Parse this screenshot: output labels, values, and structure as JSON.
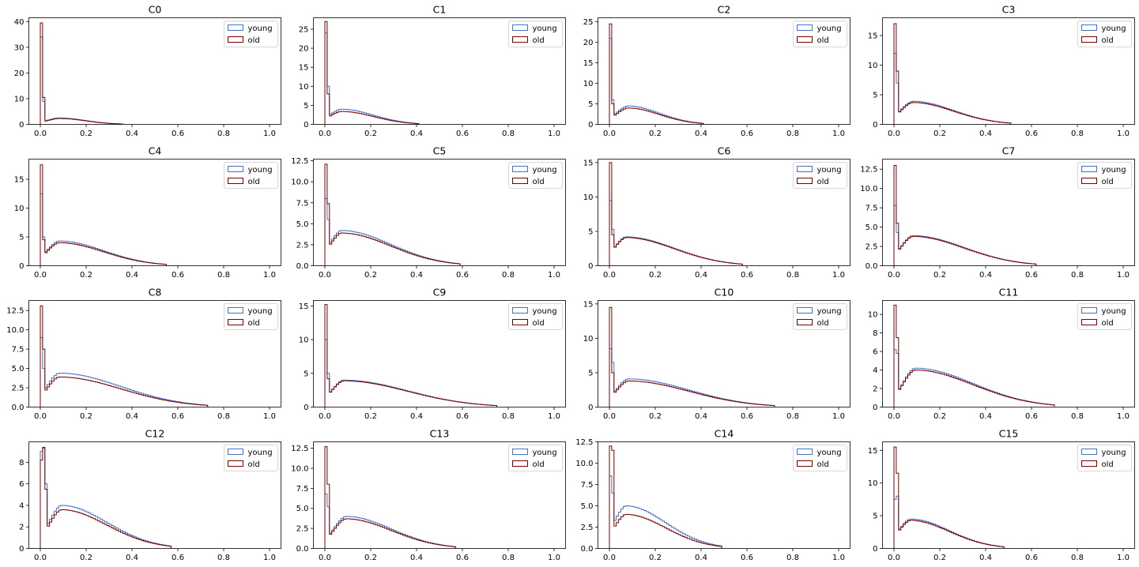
{
  "colors": {
    "young": "#4472c4",
    "old": "#7a0000",
    "axis": "#000000",
    "background": "#ffffff"
  },
  "chart_data": [
    {
      "type": "histogram",
      "title": "C0",
      "xlim": [
        0,
        1
      ],
      "xticks": [
        "0.0",
        "0.2",
        "0.4",
        "0.6",
        "0.8",
        "1.0"
      ],
      "yticks": [
        "0",
        "10",
        "20",
        "30",
        "40"
      ],
      "ylim": [
        0,
        41.5
      ],
      "legend": {
        "position": "top-right",
        "entries": [
          "young",
          "old"
        ]
      },
      "data_max": 0.36,
      "series": [
        {
          "name": "young",
          "peaks": [
            34,
            9
          ],
          "bump": 2.5,
          "mode": 0.08
        },
        {
          "name": "old",
          "peaks": [
            39.5,
            10.5
          ],
          "bump": 2.3,
          "mode": 0.08
        }
      ]
    },
    {
      "type": "histogram",
      "title": "C1",
      "xlim": [
        0,
        1
      ],
      "xticks": [
        "0.0",
        "0.2",
        "0.4",
        "0.6",
        "0.8",
        "1.0"
      ],
      "yticks": [
        "0",
        "5",
        "10",
        "15",
        "20",
        "25"
      ],
      "ylim": [
        0,
        28
      ],
      "legend": {
        "position": "top-right",
        "entries": [
          "young",
          "old"
        ]
      },
      "data_max": 0.41,
      "series": [
        {
          "name": "young",
          "peaks": [
            24,
            10
          ],
          "bump": 4.0,
          "mode": 0.07
        },
        {
          "name": "old",
          "peaks": [
            27,
            8
          ],
          "bump": 3.4,
          "mode": 0.07
        }
      ]
    },
    {
      "type": "histogram",
      "title": "C2",
      "xlim": [
        0,
        1
      ],
      "xticks": [
        "0.0",
        "0.2",
        "0.4",
        "0.6",
        "0.8",
        "1.0"
      ],
      "yticks": [
        "0",
        "5",
        "10",
        "15",
        "20",
        "25"
      ],
      "ylim": [
        0,
        26
      ],
      "legend": {
        "position": "top-right",
        "entries": [
          "young",
          "old"
        ]
      },
      "data_max": 0.41,
      "series": [
        {
          "name": "young",
          "peaks": [
            21,
            6
          ],
          "bump": 4.5,
          "mode": 0.08
        },
        {
          "name": "old",
          "peaks": [
            24.5,
            5
          ],
          "bump": 4.0,
          "mode": 0.08
        }
      ]
    },
    {
      "type": "histogram",
      "title": "C3",
      "xlim": [
        0,
        1
      ],
      "xticks": [
        "0.0",
        "0.2",
        "0.4",
        "0.6",
        "0.8",
        "1.0"
      ],
      "yticks": [
        "0",
        "5",
        "10",
        "15"
      ],
      "ylim": [
        0,
        18
      ],
      "legend": {
        "position": "top-right",
        "entries": [
          "young",
          "old"
        ]
      },
      "data_max": 0.51,
      "series": [
        {
          "name": "young",
          "peaks": [
            12,
            7
          ],
          "bump": 3.9,
          "mode": 0.08
        },
        {
          "name": "old",
          "peaks": [
            17,
            9
          ],
          "bump": 3.7,
          "mode": 0.08
        }
      ]
    },
    {
      "type": "histogram",
      "title": "C4",
      "xlim": [
        0,
        1
      ],
      "xticks": [
        "0.0",
        "0.2",
        "0.4",
        "0.6",
        "0.8",
        "1.0"
      ],
      "yticks": [
        "0",
        "5",
        "10",
        "15"
      ],
      "ylim": [
        0,
        18.5
      ],
      "legend": {
        "position": "top-right",
        "entries": [
          "young",
          "old"
        ]
      },
      "data_max": 0.55,
      "series": [
        {
          "name": "young",
          "peaks": [
            12.5,
            5
          ],
          "bump": 4.3,
          "mode": 0.08
        },
        {
          "name": "old",
          "peaks": [
            17.5,
            4.5
          ],
          "bump": 4.0,
          "mode": 0.08
        }
      ]
    },
    {
      "type": "histogram",
      "title": "C5",
      "xlim": [
        0,
        1
      ],
      "xticks": [
        "0.0",
        "0.2",
        "0.4",
        "0.6",
        "0.8",
        "1.0"
      ],
      "yticks": [
        "0.0",
        "2.5",
        "5.0",
        "7.5",
        "10.0",
        "12.5"
      ],
      "ylim": [
        0,
        12.7
      ],
      "legend": {
        "position": "top-right",
        "entries": [
          "young",
          "old"
        ]
      },
      "data_max": 0.59,
      "series": [
        {
          "name": "young",
          "peaks": [
            8,
            5.5
          ],
          "bump": 4.2,
          "mode": 0.07
        },
        {
          "name": "old",
          "peaks": [
            12.1,
            7.4
          ],
          "bump": 3.9,
          "mode": 0.07
        }
      ]
    },
    {
      "type": "histogram",
      "title": "C6",
      "xlim": [
        0,
        1
      ],
      "xticks": [
        "0.0",
        "0.2",
        "0.4",
        "0.6",
        "0.8",
        "1.0"
      ],
      "yticks": [
        "0",
        "5",
        "10",
        "15"
      ],
      "ylim": [
        0,
        15.5
      ],
      "legend": {
        "position": "top-right",
        "entries": [
          "young",
          "old"
        ]
      },
      "data_max": 0.58,
      "series": [
        {
          "name": "young",
          "peaks": [
            9.5,
            5.3
          ],
          "bump": 4.2,
          "mode": 0.07
        },
        {
          "name": "old",
          "peaks": [
            15,
            4.5
          ],
          "bump": 4.1,
          "mode": 0.07
        }
      ]
    },
    {
      "type": "histogram",
      "title": "C7",
      "xlim": [
        0,
        1
      ],
      "xticks": [
        "0.0",
        "0.2",
        "0.4",
        "0.6",
        "0.8",
        "1.0"
      ],
      "yticks": [
        "0.0",
        "2.5",
        "5.0",
        "7.5",
        "10.0",
        "12.5"
      ],
      "ylim": [
        0,
        13.8
      ],
      "legend": {
        "position": "top-right",
        "entries": [
          "young",
          "old"
        ]
      },
      "data_max": 0.62,
      "series": [
        {
          "name": "young",
          "peaks": [
            7.8,
            4.3
          ],
          "bump": 3.9,
          "mode": 0.08
        },
        {
          "name": "old",
          "peaks": [
            13,
            5.5
          ],
          "bump": 3.8,
          "mode": 0.08
        }
      ]
    },
    {
      "type": "histogram",
      "title": "C8",
      "xlim": [
        0,
        1
      ],
      "xticks": [
        "0.0",
        "0.2",
        "0.4",
        "0.6",
        "0.8",
        "1.0"
      ],
      "yticks": [
        "0.0",
        "2.5",
        "5.0",
        "7.5",
        "10.0",
        "12.5"
      ],
      "ylim": [
        0,
        13.8
      ],
      "legend": {
        "position": "top-right",
        "entries": [
          "young",
          "old"
        ]
      },
      "data_max": 0.73,
      "series": [
        {
          "name": "young",
          "peaks": [
            9,
            5
          ],
          "bump": 4.4,
          "mode": 0.08
        },
        {
          "name": "old",
          "peaks": [
            13.1,
            7.5
          ],
          "bump": 3.9,
          "mode": 0.08
        }
      ]
    },
    {
      "type": "histogram",
      "title": "C9",
      "xlim": [
        0,
        1
      ],
      "xticks": [
        "0.0",
        "0.2",
        "0.4",
        "0.6",
        "0.8",
        "1.0"
      ],
      "yticks": [
        "0",
        "5",
        "10",
        "15"
      ],
      "ylim": [
        0,
        15.8
      ],
      "legend": {
        "position": "top-right",
        "entries": [
          "young",
          "old"
        ]
      },
      "data_max": 0.75,
      "series": [
        {
          "name": "young",
          "peaks": [
            10,
            5
          ],
          "bump": 4.0,
          "mode": 0.08
        },
        {
          "name": "old",
          "peaks": [
            15.2,
            4.2
          ],
          "bump": 3.9,
          "mode": 0.08
        }
      ]
    },
    {
      "type": "histogram",
      "title": "C10",
      "xlim": [
        0,
        1
      ],
      "xticks": [
        "0.0",
        "0.2",
        "0.4",
        "0.6",
        "0.8",
        "1.0"
      ],
      "yticks": [
        "0",
        "5",
        "10",
        "15"
      ],
      "ylim": [
        0,
        15.5
      ],
      "legend": {
        "position": "top-right",
        "entries": [
          "young",
          "old"
        ]
      },
      "data_max": 0.72,
      "series": [
        {
          "name": "young",
          "peaks": [
            8.5,
            6.5
          ],
          "bump": 4.1,
          "mode": 0.08
        },
        {
          "name": "old",
          "peaks": [
            14.5,
            5
          ],
          "bump": 3.8,
          "mode": 0.08
        }
      ]
    },
    {
      "type": "histogram",
      "title": "C11",
      "xlim": [
        0,
        1
      ],
      "xticks": [
        "0.0",
        "0.2",
        "0.4",
        "0.6",
        "0.8",
        "1.0"
      ],
      "yticks": [
        "0",
        "2",
        "4",
        "6",
        "8",
        "10"
      ],
      "ylim": [
        0,
        11.5
      ],
      "legend": {
        "position": "top-right",
        "entries": [
          "young",
          "old"
        ]
      },
      "data_max": 0.7,
      "series": [
        {
          "name": "young",
          "peaks": [
            6.2,
            5.8
          ],
          "bump": 4.2,
          "mode": 0.09
        },
        {
          "name": "old",
          "peaks": [
            11,
            7.5
          ],
          "bump": 4.0,
          "mode": 0.09
        }
      ]
    },
    {
      "type": "histogram",
      "title": "C12",
      "xlim": [
        0,
        1
      ],
      "xticks": [
        "0.0",
        "0.2",
        "0.4",
        "0.6",
        "0.8",
        "1.0"
      ],
      "yticks": [
        "0",
        "2",
        "4",
        "6",
        "8"
      ],
      "ylim": [
        0,
        9.9
      ],
      "legend": {
        "position": "top-right",
        "entries": [
          "young",
          "old"
        ]
      },
      "data_max": 0.57,
      "series": [
        {
          "name": "young",
          "peaks": [
            9,
            9.3,
            6
          ],
          "bump": 4.0,
          "mode": 0.09
        },
        {
          "name": "old",
          "peaks": [
            8.2,
            9.4,
            5.5
          ],
          "bump": 3.6,
          "mode": 0.09
        }
      ]
    },
    {
      "type": "histogram",
      "title": "C13",
      "xlim": [
        0,
        1
      ],
      "xticks": [
        "0.0",
        "0.2",
        "0.4",
        "0.6",
        "0.8",
        "1.0"
      ],
      "yticks": [
        "0.0",
        "2.5",
        "5.0",
        "7.5",
        "10.0",
        "12.5"
      ],
      "ylim": [
        0,
        13.3
      ],
      "legend": {
        "position": "top-right",
        "entries": [
          "young",
          "old"
        ]
      },
      "data_max": 0.57,
      "series": [
        {
          "name": "young",
          "peaks": [
            6.8,
            5.2
          ],
          "bump": 4.0,
          "mode": 0.09
        },
        {
          "name": "old",
          "peaks": [
            12.7,
            8
          ],
          "bump": 3.7,
          "mode": 0.09
        }
      ]
    },
    {
      "type": "histogram",
      "title": "C14",
      "xlim": [
        0,
        1
      ],
      "xticks": [
        "0.0",
        "0.2",
        "0.4",
        "0.6",
        "0.8",
        "1.0"
      ],
      "yticks": [
        "0.0",
        "2.5",
        "5.0",
        "7.5",
        "10.0",
        "12.5"
      ],
      "ylim": [
        0,
        12.5
      ],
      "legend": {
        "position": "top-right",
        "entries": [
          "young",
          "old"
        ]
      },
      "data_max": 0.49,
      "series": [
        {
          "name": "young",
          "peaks": [
            8.5,
            6.5
          ],
          "bump": 5.0,
          "mode": 0.07
        },
        {
          "name": "old",
          "peaks": [
            12,
            11.5
          ],
          "bump": 4.0,
          "mode": 0.07
        }
      ]
    },
    {
      "type": "histogram",
      "title": "C15",
      "xlim": [
        0,
        1
      ],
      "xticks": [
        "0.0",
        "0.2",
        "0.4",
        "0.6",
        "0.8",
        "1.0"
      ],
      "yticks": [
        "0",
        "5",
        "10",
        "15"
      ],
      "ylim": [
        0,
        16.3
      ],
      "legend": {
        "position": "top-right",
        "entries": [
          "young",
          "old"
        ]
      },
      "data_max": 0.48,
      "series": [
        {
          "name": "young",
          "peaks": [
            7.5,
            8
          ],
          "bump": 4.5,
          "mode": 0.07
        },
        {
          "name": "old",
          "peaks": [
            15.5,
            11.5
          ],
          "bump": 4.3,
          "mode": 0.07
        }
      ]
    }
  ]
}
